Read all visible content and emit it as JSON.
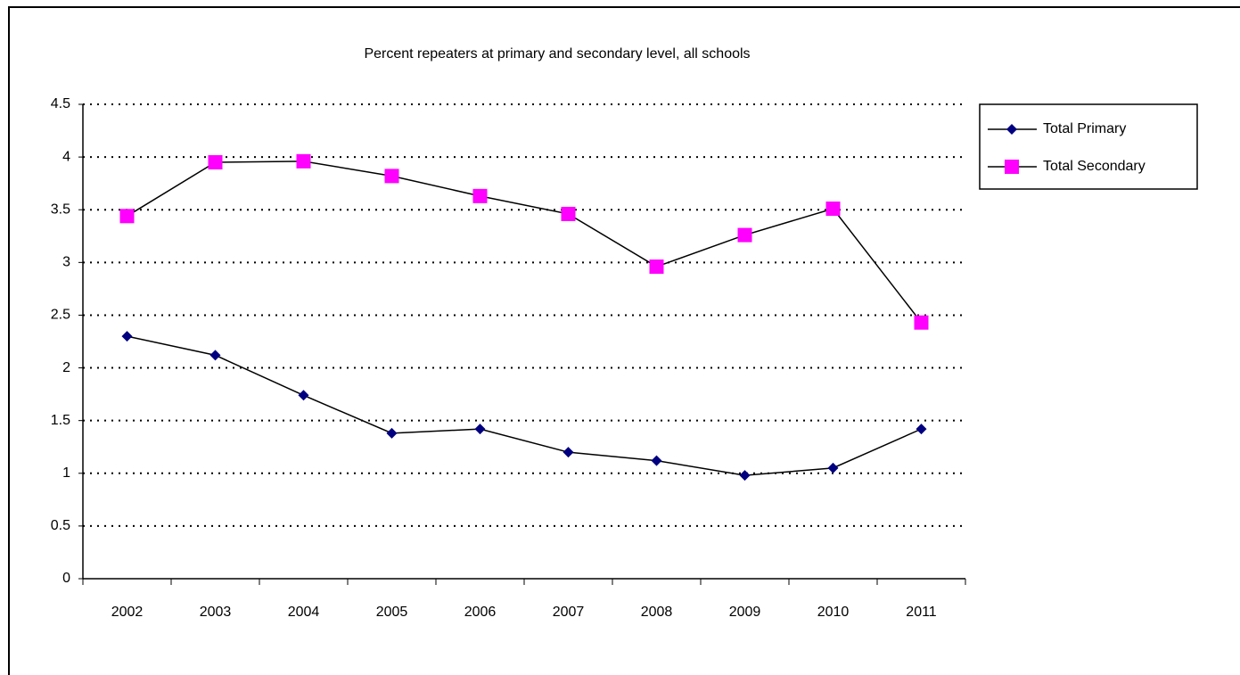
{
  "chart_data": {
    "type": "line",
    "title": "Percent repeaters at primary and secondary level, all schools",
    "categories": [
      "2002",
      "2003",
      "2004",
      "2005",
      "2006",
      "2007",
      "2008",
      "2009",
      "2010",
      "2011"
    ],
    "series": [
      {
        "name": "Total Primary",
        "color": "#000080",
        "marker": "diamond",
        "values": [
          2.3,
          2.12,
          1.74,
          1.38,
          1.42,
          1.2,
          1.12,
          0.98,
          1.05,
          1.42
        ]
      },
      {
        "name": "Total Secondary",
        "color": "#ff00ff",
        "marker": "square",
        "values": [
          3.44,
          3.95,
          3.96,
          3.82,
          3.63,
          3.46,
          2.96,
          3.26,
          3.51,
          2.43
        ]
      }
    ],
    "ylim": [
      0,
      4.5
    ],
    "yticks": [
      0,
      0.5,
      1,
      1.5,
      2,
      2.5,
      3,
      3.5,
      4,
      4.5
    ],
    "grid": true,
    "legend": "right"
  }
}
